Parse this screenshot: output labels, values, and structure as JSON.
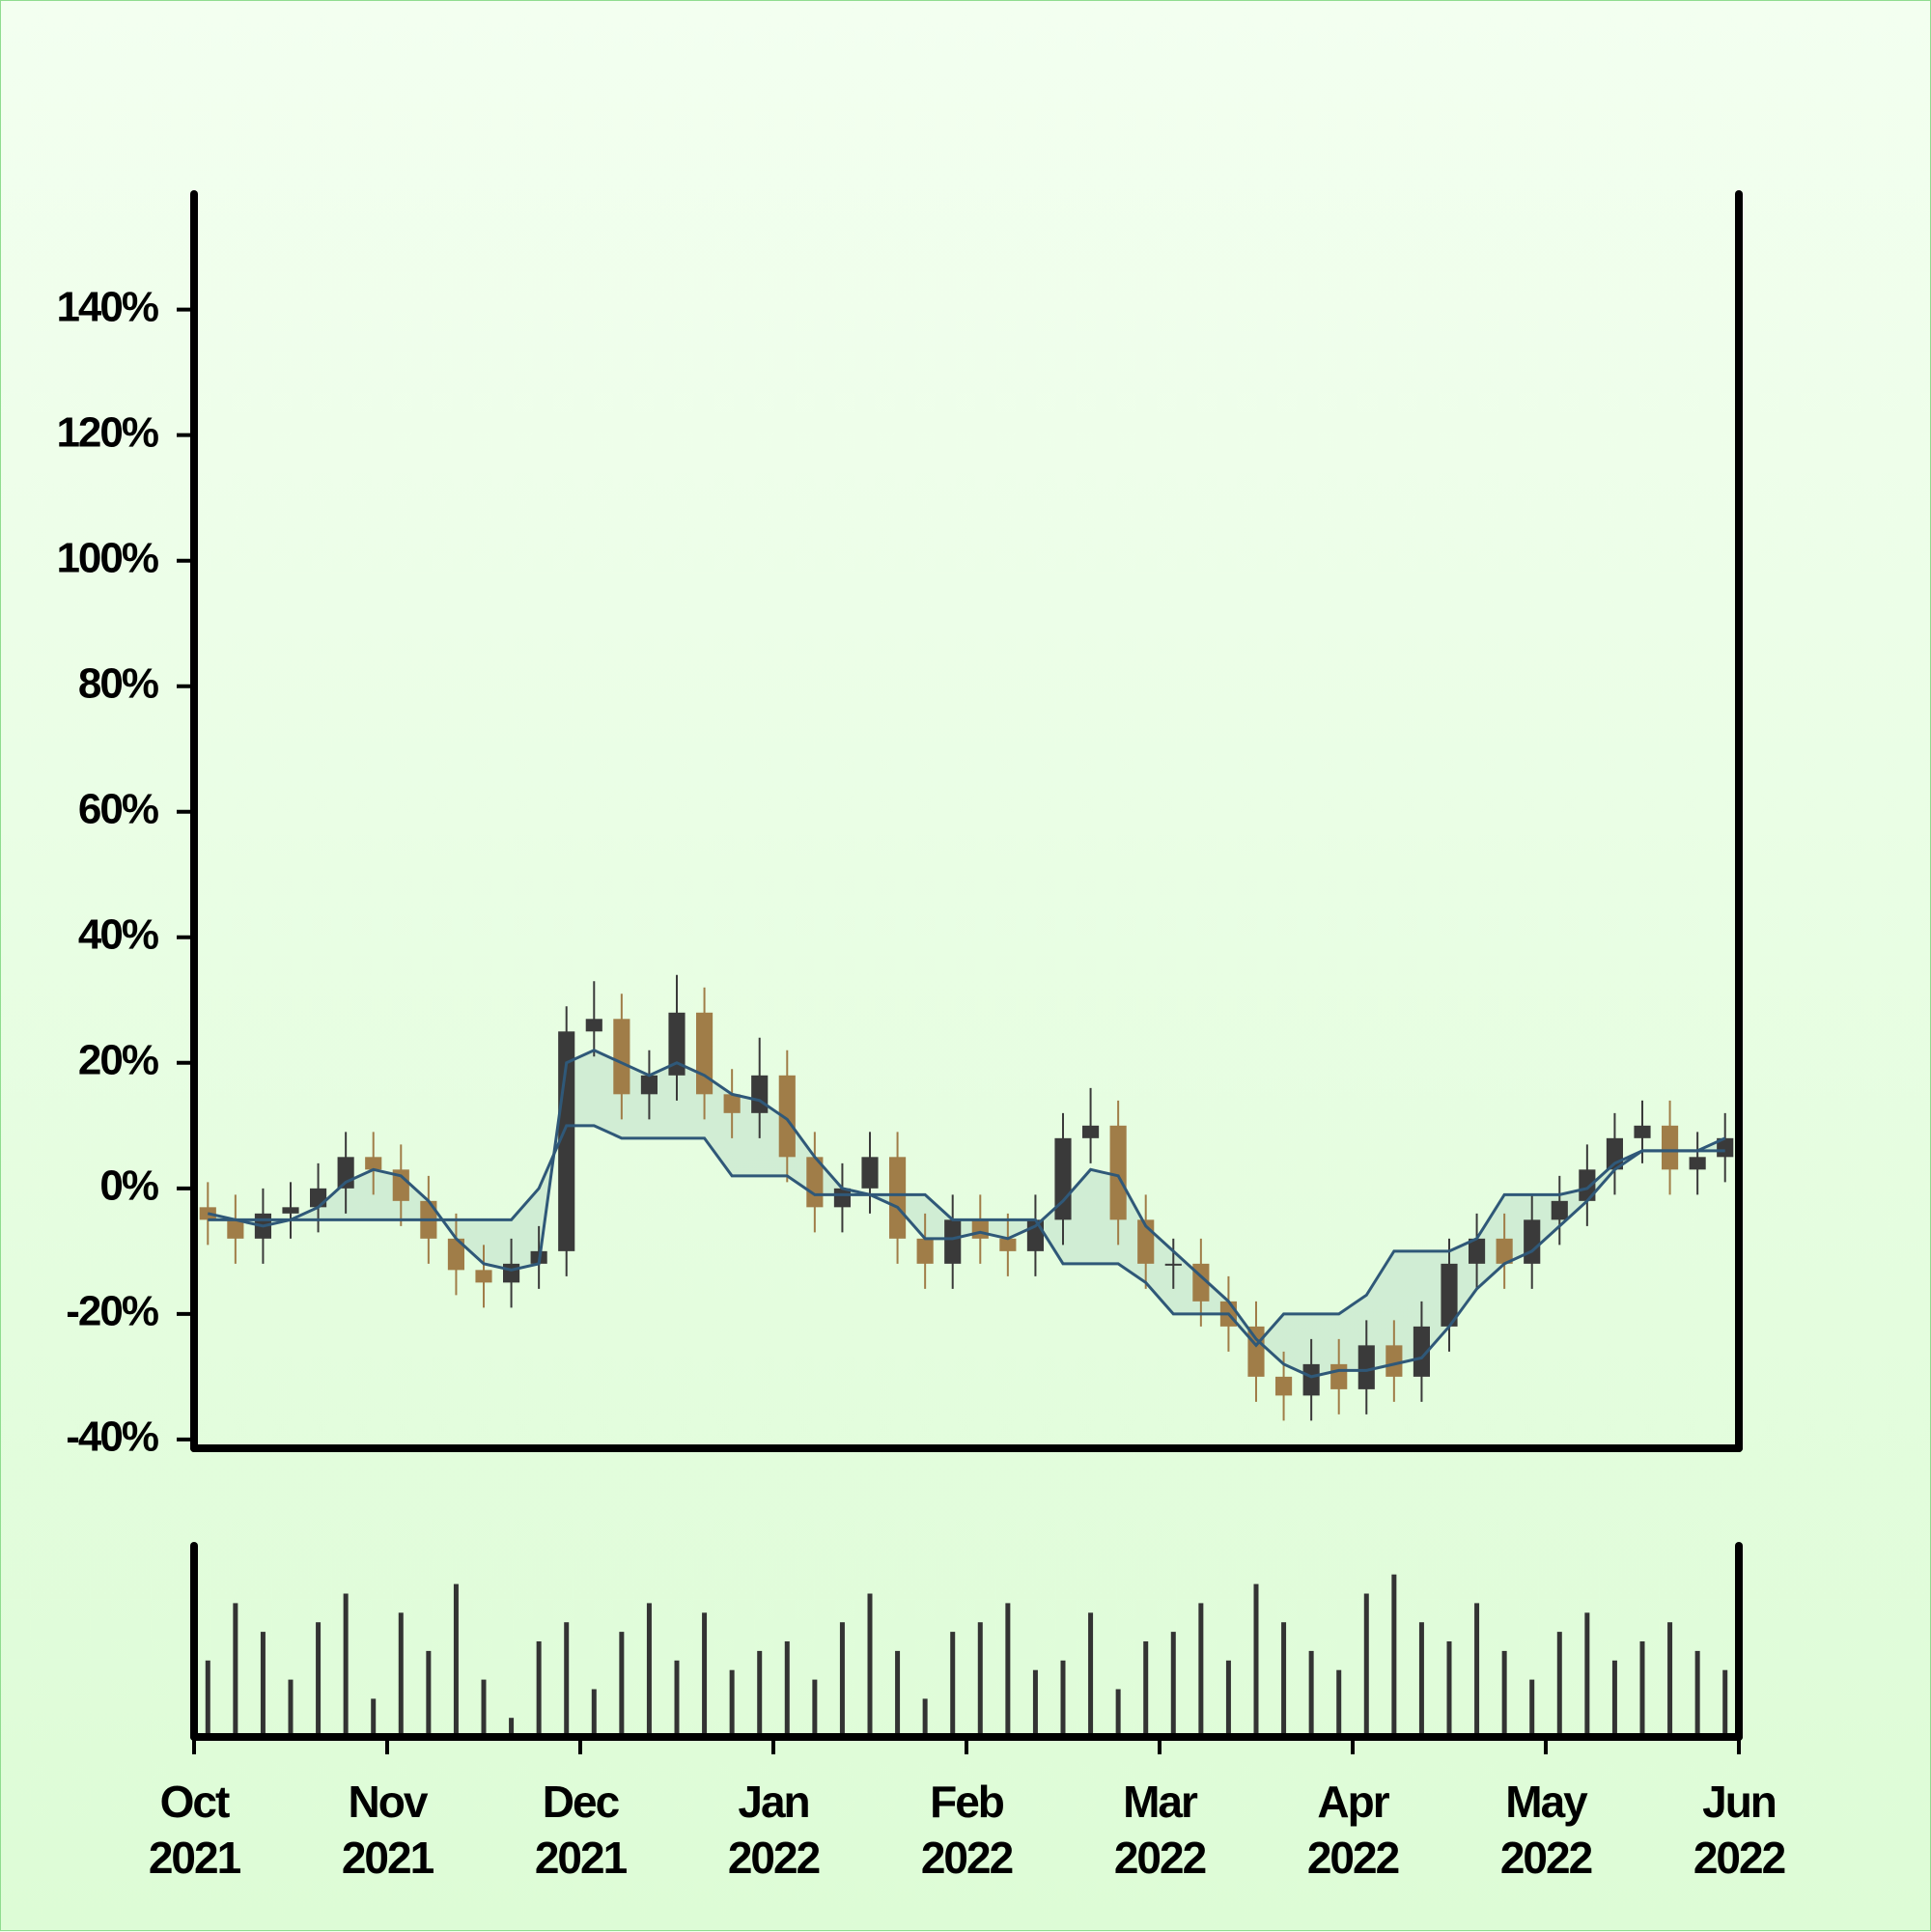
{
  "chart_data": {
    "type": "candlestick",
    "categories": [
      null,
      null,
      null,
      null,
      null,
      null,
      null,
      null,
      null,
      null,
      null,
      null,
      null,
      null,
      null,
      null,
      null,
      null,
      null,
      null,
      null,
      null,
      null,
      null,
      null,
      null,
      null,
      null,
      null,
      null,
      null,
      null,
      null,
      null,
      null,
      null,
      null,
      null,
      null,
      null,
      null,
      null,
      null,
      null,
      null,
      null,
      null,
      null,
      null,
      null,
      null,
      null,
      null,
      null,
      null,
      null
    ],
    "open": [
      -3,
      -5,
      -8,
      -4,
      -3,
      0,
      5,
      3,
      -2,
      -8,
      -13,
      -15,
      -12,
      -10,
      25,
      27,
      15,
      18,
      28,
      15,
      12,
      18,
      5,
      -3,
      0,
      5,
      -8,
      -12,
      -5,
      -8,
      -10,
      -5,
      8,
      10,
      -5,
      -12,
      -12,
      -18,
      -22,
      -30,
      -33,
      -28,
      -32,
      -25,
      -30,
      -22,
      -12,
      -8,
      -12,
      -5,
      -2,
      3,
      8,
      10,
      3,
      5
    ],
    "high": [
      1,
      -1,
      0,
      1,
      4,
      9,
      9,
      7,
      2,
      -4,
      -9,
      -8,
      -6,
      29,
      33,
      31,
      22,
      34,
      32,
      19,
      24,
      22,
      9,
      4,
      9,
      9,
      -4,
      -1,
      -1,
      -4,
      -1,
      12,
      16,
      14,
      -1,
      -8,
      -8,
      -14,
      -18,
      -26,
      -24,
      -24,
      -21,
      -21,
      -18,
      -8,
      -4,
      -4,
      -1,
      2,
      7,
      12,
      14,
      14,
      9,
      12
    ],
    "low": [
      -9,
      -12,
      -12,
      -8,
      -7,
      -4,
      -1,
      -6,
      -12,
      -17,
      -19,
      -19,
      -16,
      -14,
      21,
      11,
      11,
      14,
      11,
      8,
      8,
      1,
      -7,
      -7,
      -4,
      -12,
      -16,
      -16,
      -12,
      -14,
      -14,
      -9,
      4,
      -9,
      -16,
      -16,
      -22,
      -26,
      -34,
      -37,
      -37,
      -36,
      -36,
      -34,
      -34,
      -26,
      -16,
      -16,
      -16,
      -9,
      -6,
      -1,
      4,
      -1,
      -1,
      1
    ],
    "close": [
      -5,
      -8,
      -4,
      -3,
      0,
      5,
      3,
      -2,
      -8,
      -13,
      -15,
      -12,
      -10,
      25,
      27,
      15,
      18,
      28,
      15,
      12,
      18,
      5,
      -3,
      0,
      5,
      -8,
      -12,
      -5,
      -8,
      -10,
      -5,
      8,
      10,
      -5,
      -12,
      -12,
      -18,
      -22,
      -30,
      -33,
      -28,
      -32,
      -25,
      -30,
      -22,
      -12,
      -8,
      -12,
      -5,
      -2,
      3,
      8,
      10,
      3,
      5,
      8
    ],
    "up_color": "#3a3a3a",
    "down_color": "#a07d48",
    "lines": [
      {
        "color": "#2f5878",
        "values": [
          -4,
          -5,
          -6,
          -5,
          -3,
          1,
          3,
          2,
          -2,
          -8,
          -12,
          -13,
          -12,
          20,
          22,
          20,
          18,
          20,
          18,
          15,
          14,
          11,
          5,
          0,
          -1,
          -3,
          -8,
          -8,
          -7,
          -8,
          -6,
          -2,
          3,
          2,
          -6,
          -10,
          -14,
          -18,
          -24,
          -28,
          -30,
          -29,
          -29,
          -28,
          -27,
          -22,
          -16,
          -12,
          -10,
          -6,
          -2,
          3,
          6,
          6,
          6,
          8
        ]
      },
      {
        "color": "#2f5878",
        "values": [
          -5,
          -5,
          -5,
          -5,
          -5,
          -5,
          -5,
          -5,
          -5,
          -5,
          -5,
          -5,
          0,
          10,
          10,
          8,
          8,
          8,
          8,
          2,
          2,
          2,
          -1,
          -1,
          -1,
          -1,
          -1,
          -5,
          -5,
          -5,
          -5,
          -12,
          -12,
          -12,
          -15,
          -20,
          -20,
          -20,
          -25,
          -20,
          -20,
          -20,
          -17,
          -10,
          -10,
          -10,
          -8,
          -1,
          -1,
          -1,
          0,
          4,
          6,
          6,
          6,
          6
        ]
      }
    ],
    "band_color": "#c8e6cf",
    "xlim": [
      0,
      56
    ],
    "xticks": [
      {
        "value": 0,
        "label": "Oct\n2021"
      },
      {
        "value": 7,
        "label": "Nov\n2021"
      },
      {
        "value": 14,
        "label": "Dec\n2021"
      },
      {
        "value": 21,
        "label": "Jan\n2022"
      },
      {
        "value": 28,
        "label": "Feb\n2022"
      },
      {
        "value": 35,
        "label": "Mar\n2022"
      },
      {
        "value": 42,
        "label": "Apr\n2022"
      },
      {
        "value": 49,
        "label": "May\n2022"
      },
      {
        "value": 56,
        "label": "Jun\n2022"
      }
    ],
    "ylim": [
      -41.4,
      158.4
    ],
    "yticks": [
      {
        "value": -40,
        "label": "-40%"
      },
      {
        "value": -20,
        "label": "-20%"
      },
      {
        "value": 0,
        "label": "0%"
      },
      {
        "value": 20,
        "label": "20%"
      },
      {
        "value": 40,
        "label": "40%"
      },
      {
        "value": 60,
        "label": "60%"
      },
      {
        "value": 80,
        "label": "80%"
      },
      {
        "value": 100,
        "label": "100%"
      },
      {
        "value": 120,
        "label": "120%"
      },
      {
        "value": 140,
        "label": "140%"
      }
    ],
    "volume": {
      "color": "#333333",
      "ylim": [
        0,
        100
      ],
      "values": [
        40,
        70,
        55,
        30,
        60,
        75,
        20,
        65,
        45,
        80,
        30,
        10,
        50,
        60,
        25,
        55,
        70,
        40,
        65,
        35,
        45,
        50,
        30,
        60,
        75,
        45,
        20,
        55,
        60,
        70,
        35,
        40,
        65,
        25,
        50,
        55,
        70,
        40,
        80,
        60,
        45,
        35,
        75,
        85,
        60,
        50,
        70,
        45,
        30,
        55,
        65,
        40,
        50,
        60,
        45,
        35
      ]
    }
  }
}
